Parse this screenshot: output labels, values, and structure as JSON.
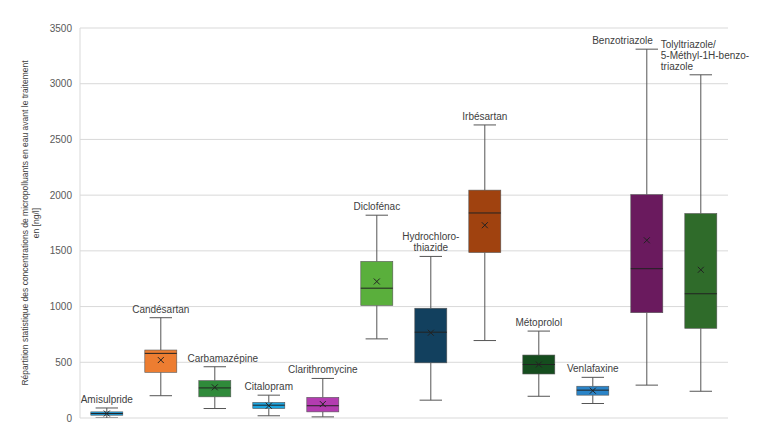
{
  "chart_data": {
    "type": "box",
    "ylabel": "Répartition statistique des concentrations de micropolluants en eau avant le traitement\nen [ng/l]",
    "categories": [
      "Amisulpride",
      "Candésartan",
      "Carbamazépine",
      "Citalopram",
      "Clarithromycine",
      "Diclofénac",
      "Hydrochloro-\nthiazide",
      "Irbésartan",
      "Métoprolol",
      "Venlafaxine",
      "Benzotriazole",
      "Tolyltriazole/\n5-Méthyl-1H-benzo-\ntriazole"
    ],
    "min": [
      0,
      200,
      85,
      20,
      10,
      710,
      160,
      695,
      195,
      130,
      295,
      240
    ],
    "q1": [
      25,
      410,
      190,
      85,
      55,
      1010,
      495,
      1485,
      395,
      205,
      945,
      805
    ],
    "median": [
      40,
      580,
      270,
      115,
      110,
      1165,
      770,
      1840,
      480,
      250,
      1340,
      1115
    ],
    "q3": [
      55,
      610,
      335,
      140,
      185,
      1405,
      985,
      2045,
      565,
      285,
      2005,
      1835
    ],
    "max": [
      90,
      900,
      460,
      205,
      355,
      1820,
      1450,
      2630,
      780,
      365,
      3310,
      3080
    ],
    "mean": [
      40,
      520,
      275,
      110,
      125,
      1225,
      765,
      1730,
      480,
      245,
      1595,
      1330
    ],
    "colors": [
      "#1f9ad6",
      "#ed7d31",
      "#2f8a3a",
      "#1ea5e0",
      "#b33cb0",
      "#5aaf3c",
      "#12405e",
      "#a0420f",
      "#154d1e",
      "#2a84c8",
      "#6a1a5e",
      "#2f6b2a"
    ],
    "ylim": [
      0,
      3500
    ],
    "yticks": [
      0,
      500,
      1000,
      1500,
      2000,
      2500,
      3000,
      3500
    ],
    "grid": true,
    "tick_labels": "y"
  }
}
